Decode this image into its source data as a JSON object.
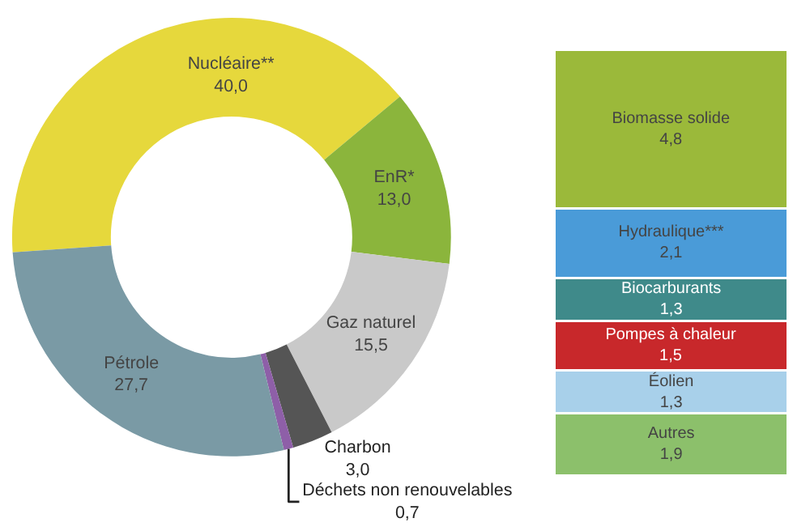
{
  "chart_data": [
    {
      "type": "donut",
      "categories": [
        "Nucléaire**",
        "EnR*",
        "Gaz naturel",
        "Charbon",
        "Déchets non renouvelables",
        "Pétrole"
      ],
      "values": [
        40.0,
        13.0,
        15.5,
        3.0,
        0.7,
        27.7
      ],
      "colors": [
        "#e6d83c",
        "#8bb53c",
        "#c9c9c9",
        "#555555",
        "#8e5fa8",
        "#7a9aa5"
      ],
      "value_labels": [
        "40,0",
        "13,0",
        "15,5",
        "3,0",
        "0,7",
        "27,7"
      ],
      "legend": false
    },
    {
      "type": "bar",
      "stacked": true,
      "categories": [
        null
      ],
      "tick_labels": false,
      "legend": false,
      "series": [
        {
          "name": "Autres",
          "color": "#8cc06b",
          "values": [
            1.9
          ],
          "value_labels": [
            "1,9"
          ]
        },
        {
          "name": "Éolien",
          "color": "#a8d0ea",
          "values": [
            1.3
          ],
          "value_labels": [
            "1,3"
          ]
        },
        {
          "name": "Pompes à chaleur",
          "color": "#c8282b",
          "values": [
            1.5
          ],
          "value_labels": [
            "1,5"
          ]
        },
        {
          "name": "Biocarburants",
          "color": "#3f8a8a",
          "values": [
            1.3
          ],
          "value_labels": [
            "1,3"
          ]
        },
        {
          "name": "Hydraulique***",
          "color": "#4a9bd8",
          "values": [
            2.1
          ],
          "value_labels": [
            "2,1"
          ]
        },
        {
          "name": "Biomasse solide",
          "color": "#9bb93a",
          "values": [
            4.8
          ],
          "value_labels": [
            "4,8"
          ]
        }
      ]
    }
  ]
}
